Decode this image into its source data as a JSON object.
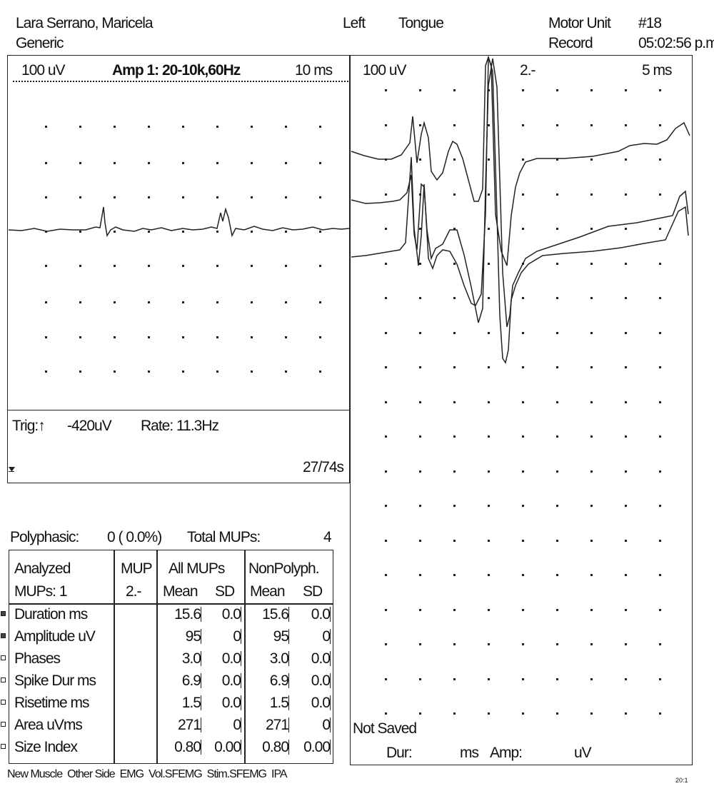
{
  "header": {
    "patient": "Lara Serrano, Maricela",
    "profile": "Generic",
    "side": "Left",
    "muscle": "Tongue",
    "mode_line1": "Motor Unit",
    "mode_line2": "Record",
    "record_no": "#18",
    "time": "05:02:56 p.m"
  },
  "left_trace": {
    "sensitivity": "100 uV",
    "amp": "Amp 1: 20-10k,60Hz",
    "sweep": "10 ms",
    "trig_label": "Trig:",
    "trig_value": "-420uV",
    "rate": "Rate:  11.3Hz",
    "counter": "27/74s"
  },
  "right_trace": {
    "sensitivity": "100 uV",
    "mup_id": "2.-",
    "sweep": "5 ms",
    "save_status": "Not Saved",
    "dur_label": "Dur:",
    "dur_unit": "ms",
    "amp_label": "Amp:",
    "amp_unit": "uV"
  },
  "summary": {
    "polyphasic_label": "Polyphasic:",
    "polyphasic_value": "0 ( 0.0%)",
    "total_label": "Total MUPs:",
    "total_value": "4"
  },
  "table": {
    "h_analyzed1": "Analyzed",
    "h_analyzed2": "MUPs:  1",
    "h_mup1": "MUP",
    "h_mup2": "2.-",
    "h_all": "All MUPs",
    "h_nonpoly": "NonPolyph.",
    "h_mean": "Mean",
    "h_sd": "SD",
    "rows": [
      {
        "label": "Duration ms",
        "checked": true,
        "mup": "",
        "all_mean": "15.6",
        "all_sd": "0.0",
        "np_mean": "15.6",
        "np_sd": "0.0"
      },
      {
        "label": "Amplitude uV",
        "checked": true,
        "mup": "",
        "all_mean": "95",
        "all_sd": "0",
        "np_mean": "95",
        "np_sd": "0"
      },
      {
        "label": "Phases",
        "checked": false,
        "mup": "",
        "all_mean": "3.0",
        "all_sd": "0.0",
        "np_mean": "3.0",
        "np_sd": "0.0"
      },
      {
        "label": "Spike Dur ms",
        "checked": false,
        "mup": "",
        "all_mean": "6.9",
        "all_sd": "0.0",
        "np_mean": "6.9",
        "np_sd": "0.0"
      },
      {
        "label": "Risetime ms",
        "checked": false,
        "mup": "",
        "all_mean": "1.5",
        "all_sd": "0.0",
        "np_mean": "1.5",
        "np_sd": "0.0"
      },
      {
        "label": "Area uVms",
        "checked": false,
        "mup": "",
        "all_mean": "271",
        "all_sd": "0",
        "np_mean": "271",
        "np_sd": "0"
      },
      {
        "label": "Size Index",
        "checked": false,
        "mup": "",
        "all_mean": "0.80",
        "all_sd": "0.00",
        "np_mean": "0.80",
        "np_sd": "0.00"
      }
    ]
  },
  "footer": {
    "buttons": [
      "New Muscle",
      "Other Side",
      "EMG",
      "Vol.SFEMG",
      "Stim.SFEMG",
      "IPA"
    ],
    "page_mark": "20:1"
  }
}
